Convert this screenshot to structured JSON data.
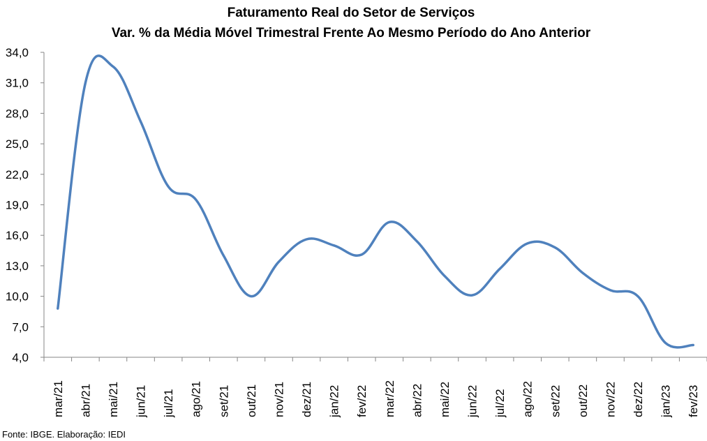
{
  "chart_data": {
    "type": "line",
    "title": "Faturamento Real do Setor de Serviços",
    "subtitle": "Var. % da Média Móvel Trimestral Frente Ao Mesmo Período do Ano Anterior",
    "xlabel": "",
    "ylabel": "",
    "ylim": [
      4.0,
      34.0
    ],
    "yticks": [
      "4,0",
      "7,0",
      "10,0",
      "13,0",
      "16,0",
      "19,0",
      "22,0",
      "25,0",
      "28,0",
      "31,0",
      "34,0"
    ],
    "categories": [
      "mar/21",
      "abr/21",
      "mai/21",
      "jun/21",
      "jul/21",
      "ago/21",
      "set/21",
      "out/21",
      "nov/21",
      "dez/21",
      "jan/22",
      "fev/22",
      "mar/22",
      "abr/22",
      "mai/22",
      "jun/22",
      "jul/22",
      "ago/22",
      "set/22",
      "out/22",
      "nov/22",
      "dez/22",
      "jan/23",
      "fev/23"
    ],
    "series": [
      {
        "values": [
          8.8,
          31.0,
          32.6,
          27.2,
          20.8,
          19.5,
          14.0,
          10.0,
          13.4,
          15.6,
          15.0,
          14.1,
          17.3,
          15.4,
          12.0,
          10.1,
          12.7,
          15.2,
          14.8,
          12.3,
          10.6,
          10.0,
          5.4,
          5.2
        ],
        "color": "#4f81bd"
      }
    ],
    "grid": false,
    "legend": "none"
  },
  "source": "Fonte: IBGE. Elaboração: IEDI"
}
